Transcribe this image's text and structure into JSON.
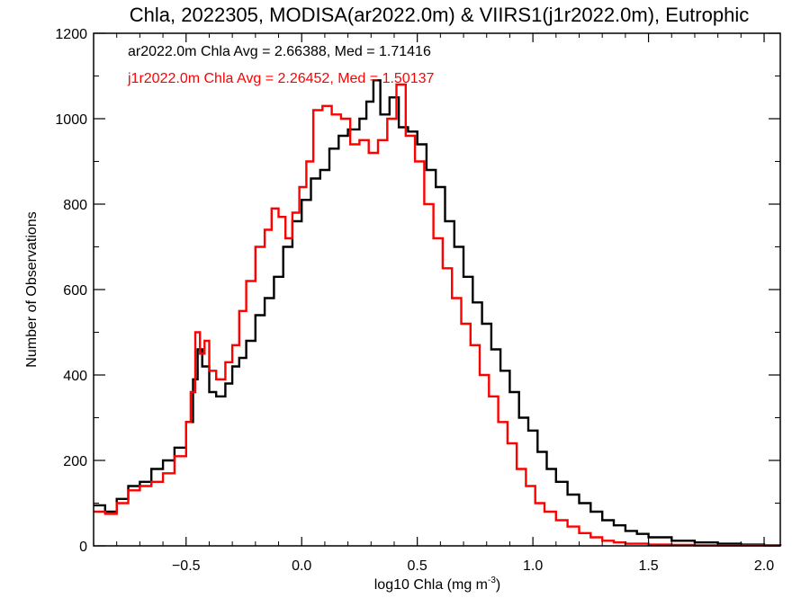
{
  "chart_data": {
    "type": "line",
    "title": "Chla, 2022305, MODISA(ar2022.0m) & VIIRS1(j1r2022.0m), Eutrophic",
    "xlabel": "log10 Chla (mg m",
    "xlabel_sup": "-3",
    "xlabel_end": ")",
    "ylabel": "Number of Observations",
    "xlim": [
      -0.9,
      2.07
    ],
    "ylim": [
      0,
      1200
    ],
    "xticks": [
      -0.5,
      0.0,
      0.5,
      1.0,
      1.5,
      2.0
    ],
    "xtick_labels": [
      "−0.5",
      "0.0",
      "0.5",
      "1.0",
      "1.5",
      "2.0"
    ],
    "yticks": [
      0,
      200,
      400,
      600,
      800,
      1000,
      1200
    ],
    "ytick_labels": [
      "0",
      "200",
      "400",
      "600",
      "800",
      "1000",
      "1200"
    ],
    "grid": false,
    "legend_position": "top-left",
    "series": [
      {
        "name": "ar2022.0m",
        "color": "#000000",
        "step": true,
        "points": [
          [
            -0.9,
            95
          ],
          [
            -0.85,
            80
          ],
          [
            -0.8,
            110
          ],
          [
            -0.75,
            140
          ],
          [
            -0.7,
            150
          ],
          [
            -0.65,
            180
          ],
          [
            -0.6,
            200
          ],
          [
            -0.55,
            230
          ],
          [
            -0.5,
            290
          ],
          [
            -0.47,
            390
          ],
          [
            -0.45,
            460
          ],
          [
            -0.43,
            420
          ],
          [
            -0.4,
            360
          ],
          [
            -0.37,
            350
          ],
          [
            -0.33,
            380
          ],
          [
            -0.3,
            420
          ],
          [
            -0.27,
            440
          ],
          [
            -0.24,
            480
          ],
          [
            -0.2,
            540
          ],
          [
            -0.16,
            580
          ],
          [
            -0.12,
            630
          ],
          [
            -0.08,
            700
          ],
          [
            -0.04,
            760
          ],
          [
            0.0,
            810
          ],
          [
            0.04,
            860
          ],
          [
            0.08,
            880
          ],
          [
            0.12,
            930
          ],
          [
            0.16,
            960
          ],
          [
            0.2,
            975
          ],
          [
            0.25,
            1000
          ],
          [
            0.28,
            1040
          ],
          [
            0.31,
            1090
          ],
          [
            0.34,
            1010
          ],
          [
            0.38,
            1050
          ],
          [
            0.42,
            980
          ],
          [
            0.46,
            970
          ],
          [
            0.5,
            940
          ],
          [
            0.54,
            880
          ],
          [
            0.58,
            840
          ],
          [
            0.62,
            760
          ],
          [
            0.66,
            700
          ],
          [
            0.7,
            630
          ],
          [
            0.74,
            570
          ],
          [
            0.78,
            520
          ],
          [
            0.82,
            460
          ],
          [
            0.86,
            410
          ],
          [
            0.9,
            360
          ],
          [
            0.94,
            300
          ],
          [
            0.98,
            270
          ],
          [
            1.02,
            220
          ],
          [
            1.06,
            180
          ],
          [
            1.1,
            150
          ],
          [
            1.15,
            120
          ],
          [
            1.2,
            100
          ],
          [
            1.25,
            80
          ],
          [
            1.3,
            60
          ],
          [
            1.35,
            48
          ],
          [
            1.4,
            35
          ],
          [
            1.45,
            28
          ],
          [
            1.5,
            20
          ],
          [
            1.6,
            12
          ],
          [
            1.7,
            8
          ],
          [
            1.8,
            5
          ],
          [
            1.9,
            3
          ],
          [
            2.0,
            1
          ],
          [
            2.07,
            0
          ]
        ]
      },
      {
        "name": "j1r2022.0m",
        "color": "#ff0000",
        "step": true,
        "points": [
          [
            -0.9,
            80
          ],
          [
            -0.85,
            75
          ],
          [
            -0.8,
            100
          ],
          [
            -0.75,
            130
          ],
          [
            -0.7,
            140
          ],
          [
            -0.65,
            150
          ],
          [
            -0.6,
            170
          ],
          [
            -0.55,
            210
          ],
          [
            -0.5,
            290
          ],
          [
            -0.48,
            360
          ],
          [
            -0.46,
            500
          ],
          [
            -0.44,
            450
          ],
          [
            -0.42,
            480
          ],
          [
            -0.4,
            410
          ],
          [
            -0.37,
            390
          ],
          [
            -0.33,
            430
          ],
          [
            -0.3,
            470
          ],
          [
            -0.27,
            550
          ],
          [
            -0.24,
            620
          ],
          [
            -0.2,
            700
          ],
          [
            -0.16,
            740
          ],
          [
            -0.13,
            790
          ],
          [
            -0.1,
            770
          ],
          [
            -0.07,
            720
          ],
          [
            -0.04,
            780
          ],
          [
            -0.01,
            840
          ],
          [
            0.02,
            900
          ],
          [
            0.05,
            1020
          ],
          [
            0.09,
            1030
          ],
          [
            0.13,
            1010
          ],
          [
            0.17,
            1000
          ],
          [
            0.21,
            940
          ],
          [
            0.25,
            950
          ],
          [
            0.29,
            920
          ],
          [
            0.33,
            950
          ],
          [
            0.37,
            1000
          ],
          [
            0.41,
            1080
          ],
          [
            0.45,
            960
          ],
          [
            0.49,
            900
          ],
          [
            0.53,
            800
          ],
          [
            0.57,
            720
          ],
          [
            0.61,
            650
          ],
          [
            0.65,
            580
          ],
          [
            0.69,
            520
          ],
          [
            0.73,
            470
          ],
          [
            0.77,
            400
          ],
          [
            0.81,
            350
          ],
          [
            0.85,
            290
          ],
          [
            0.89,
            240
          ],
          [
            0.93,
            180
          ],
          [
            0.97,
            140
          ],
          [
            1.01,
            100
          ],
          [
            1.05,
            80
          ],
          [
            1.1,
            60
          ],
          [
            1.15,
            45
          ],
          [
            1.2,
            30
          ],
          [
            1.25,
            20
          ],
          [
            1.3,
            12
          ],
          [
            1.35,
            8
          ],
          [
            1.4,
            5
          ],
          [
            1.5,
            3
          ],
          [
            1.6,
            2
          ],
          [
            1.7,
            1
          ],
          [
            2.07,
            0
          ]
        ]
      }
    ],
    "annotations": [
      {
        "text": "ar2022.0m Chla Avg = 2.66388, Med = 1.71416",
        "color": "#000000"
      },
      {
        "text": "j1r2022.0m Chla Avg = 2.26452, Med = 1.50137",
        "color": "#ff0000"
      }
    ]
  }
}
